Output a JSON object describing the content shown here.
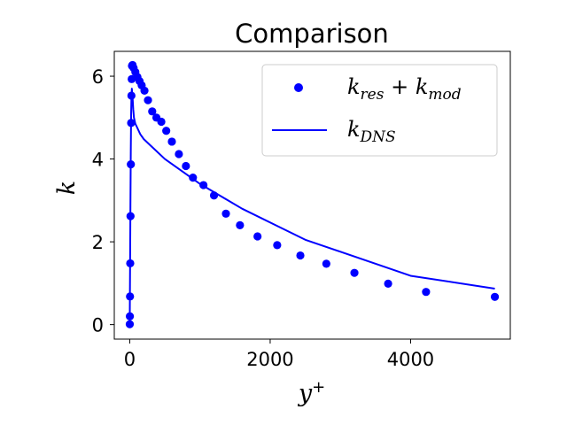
{
  "chart_data": {
    "type": "scatter",
    "title": "Comparison",
    "xlabel": "y+",
    "ylabel": "k",
    "xlim": [
      -220,
      5420
    ],
    "ylim": [
      -0.35,
      6.6
    ],
    "xticks": [
      0,
      2000,
      4000
    ],
    "yticks": [
      0,
      2,
      4,
      6
    ],
    "grid": false,
    "legend_placement": "top-right",
    "series": [
      {
        "name": "k_res + k_mod",
        "kind": "markers",
        "color": "#0000ff",
        "x": [
          0.5,
          2,
          4,
          7,
          11,
          16,
          20,
          24,
          28,
          32,
          40,
          55,
          80,
          110,
          140,
          170,
          210,
          260,
          320,
          380,
          450,
          520,
          600,
          700,
          800,
          900,
          1050,
          1200,
          1370,
          1570,
          1820,
          2100,
          2430,
          2800,
          3200,
          3680,
          4220,
          5200
        ],
        "y": [
          0.01,
          0.2,
          0.68,
          1.48,
          2.62,
          3.87,
          4.87,
          5.53,
          5.93,
          6.25,
          6.27,
          6.2,
          6.1,
          5.98,
          5.88,
          5.78,
          5.65,
          5.42,
          5.15,
          5.0,
          4.9,
          4.68,
          4.42,
          4.12,
          3.83,
          3.55,
          3.37,
          3.12,
          2.68,
          2.4,
          2.13,
          1.92,
          1.67,
          1.47,
          1.25,
          0.99,
          0.79,
          0.67
        ]
      },
      {
        "name": "k_DNS",
        "kind": "line",
        "color": "#0000ff",
        "x": [
          0,
          5,
          10,
          15,
          20,
          25,
          30,
          40,
          50,
          60,
          80,
          100,
          150,
          200,
          300,
          500,
          1000,
          1600,
          2500,
          4000,
          5200
        ],
        "y": [
          0,
          1.4,
          2.9,
          4.2,
          5.1,
          5.55,
          5.7,
          5.5,
          5.2,
          5.0,
          4.85,
          4.78,
          4.6,
          4.48,
          4.32,
          4.0,
          3.4,
          2.8,
          2.05,
          1.18,
          0.87
        ]
      }
    ]
  }
}
